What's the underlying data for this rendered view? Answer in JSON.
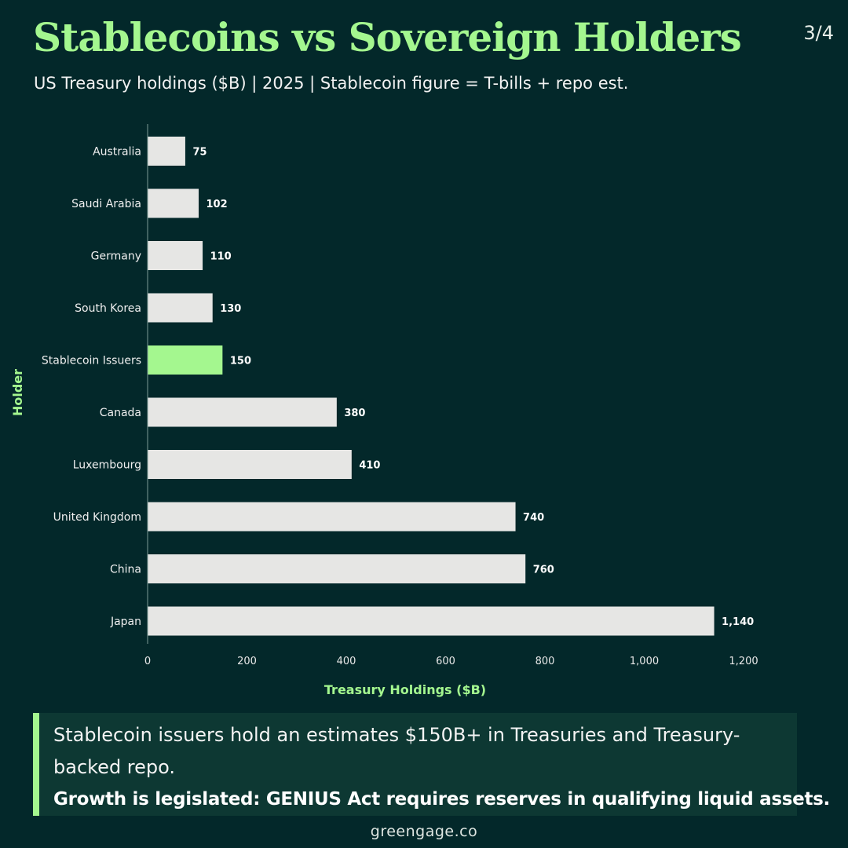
{
  "header": {
    "title": "Stablecoins vs Sovereign Holders",
    "page_indicator": "3/4",
    "subtitle": "US Treasury holdings ($B)  |  2025  |  Stablecoin figure = T-bills + repo est."
  },
  "chart_data": {
    "type": "bar",
    "orientation": "horizontal",
    "categories": [
      "Australia",
      "Saudi Arabia",
      "Germany",
      "South Korea",
      "Stablecoin Issuers",
      "Canada",
      "Luxembourg",
      "United Kingdom",
      "China",
      "Japan"
    ],
    "values": [
      75,
      102,
      110,
      130,
      150,
      380,
      410,
      740,
      760,
      1140
    ],
    "value_labels": [
      "75",
      "102",
      "110",
      "130",
      "150",
      "380",
      "410",
      "740",
      "760",
      "1,140"
    ],
    "highlight": "Stablecoin Issuers",
    "xlabel": "Treasury Holdings ($B)",
    "ylabel": "Holder",
    "xlim": [
      0,
      1200
    ],
    "xticks": [
      0,
      200,
      400,
      600,
      800,
      1000,
      1200
    ],
    "xtick_labels": [
      "0",
      "200",
      "400",
      "600",
      "800",
      "1,000",
      "1,200"
    ],
    "grid": false,
    "colors": {
      "bar": "#e6e6e4",
      "highlight": "#a4f78f",
      "axis_label": "#a4f78f"
    }
  },
  "callout": {
    "text": "Stablecoin issuers hold an estimates $150B+ in Treasuries and Treasury-backed repo.",
    "bold_text": "Growth is legislated: GENIUS Act requires reserves in qualifying liquid assets."
  },
  "footer": {
    "text": "greengage.co"
  },
  "colors": {
    "background": "#03282a",
    "accent": "#a4f78f",
    "callout_bg": "#0d3833"
  }
}
